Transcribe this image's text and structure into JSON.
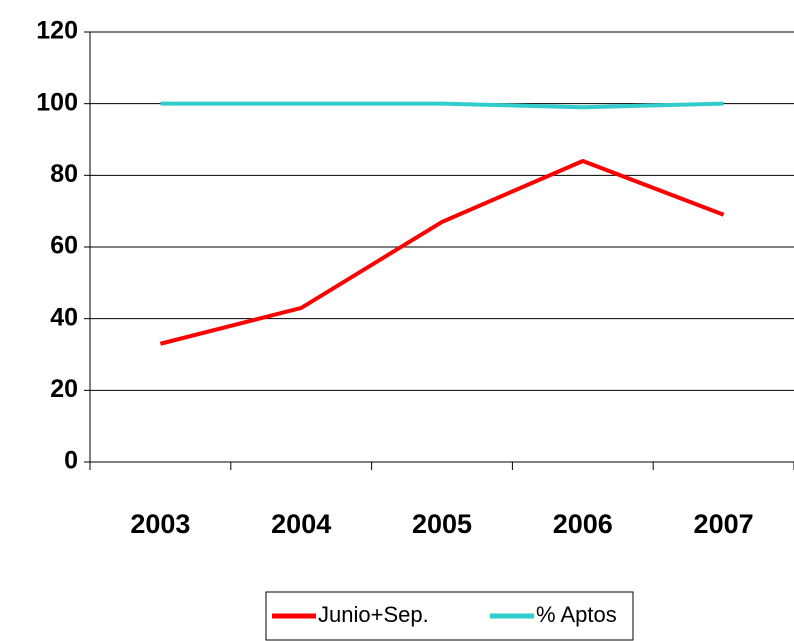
{
  "chart_data": {
    "type": "line",
    "categories": [
      "2003",
      "2004",
      "2005",
      "2006",
      "2007"
    ],
    "series": [
      {
        "name": "Junio+Sep.",
        "color": "#ff0000",
        "values": [
          33,
          43,
          67,
          84,
          69
        ]
      },
      {
        "name": "% Aptos",
        "color": "#33cccc",
        "values": [
          100,
          100,
          100,
          99,
          100
        ]
      }
    ],
    "ylim": [
      0,
      120
    ],
    "yticks": [
      0,
      20,
      40,
      60,
      80,
      100,
      120
    ],
    "grid": true,
    "legend": "bottom"
  }
}
